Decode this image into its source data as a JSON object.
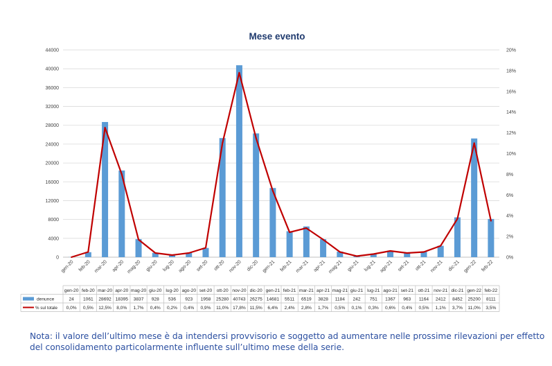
{
  "chart_data": {
    "type": "bar",
    "title": "Mese evento",
    "categories": [
      "gen-20",
      "feb-20",
      "mar-20",
      "apr-20",
      "mag-20",
      "giu-20",
      "lug-20",
      "ago-20",
      "set-20",
      "ott-20",
      "nov-20",
      "dic-20",
      "gen-21",
      "feb-21",
      "mar-21",
      "apr-21",
      "mag-21",
      "giu-21",
      "lug-21",
      "ago-21",
      "set-21",
      "ott-21",
      "nov-21",
      "dic-21",
      "gen-22",
      "feb-22"
    ],
    "y_left": {
      "ylim": [
        0,
        44000
      ],
      "ticks": [
        "0",
        "4000",
        "8000",
        "12000",
        "16000",
        "20000",
        "24000",
        "28000",
        "32000",
        "36000",
        "40000",
        "44000"
      ]
    },
    "y_right": {
      "ylim": [
        0,
        20
      ],
      "ticks": [
        "0%",
        "2%",
        "4%",
        "6%",
        "8%",
        "10%",
        "12%",
        "14%",
        "16%",
        "18%",
        "20%"
      ]
    },
    "series": [
      {
        "name": "denunce",
        "type": "bar",
        "axis": "left",
        "color": "#5b9bd5",
        "values": [
          24,
          1061,
          28692,
          18395,
          3837,
          928,
          536,
          923,
          1958,
          25280,
          40743,
          26275,
          14681,
          5511,
          6519,
          3828,
          1184,
          242,
          751,
          1367,
          963,
          1164,
          2412,
          8452,
          25200,
          8111
        ],
        "labels": [
          "24",
          "1061",
          "28692",
          "18395",
          "3837",
          "928",
          "536",
          "923",
          "1958",
          "25280",
          "40743",
          "26275",
          "14681",
          "5511",
          "6519",
          "3828",
          "1184",
          "242",
          "751",
          "1367",
          "963",
          "1164",
          "2412",
          "8452",
          "25200",
          "8111"
        ]
      },
      {
        "name": "% sul totale",
        "type": "line",
        "axis": "right",
        "color": "#c00000",
        "values": [
          0.0,
          0.5,
          12.5,
          8.0,
          1.7,
          0.4,
          0.2,
          0.4,
          0.9,
          11.0,
          17.8,
          11.5,
          6.4,
          2.4,
          2.8,
          1.7,
          0.5,
          0.1,
          0.3,
          0.6,
          0.4,
          0.5,
          1.1,
          3.7,
          11.0,
          3.5
        ],
        "labels": [
          "0,0%",
          "0,5%",
          "12,5%",
          "8,0%",
          "1,7%",
          "0,4%",
          "0,2%",
          "0,4%",
          "0,9%",
          "11,0%",
          "17,8%",
          "11,5%",
          "6,4%",
          "2,4%",
          "2,8%",
          "1,7%",
          "0,5%",
          "0,1%",
          "0,3%",
          "0,6%",
          "0,4%",
          "0,5%",
          "1,1%",
          "3,7%",
          "11,0%",
          "3,5%"
        ]
      }
    ],
    "grid": true,
    "legend": "data-table"
  },
  "note": {
    "line1": "Nota: il valore dell’ultimo mese è da intendersi provvisorio e soggetto ad aumentare nelle prossime rilevazioni per effetto",
    "line2": "del consolidamento particolarmente influente sull’ultimo mese della serie."
  }
}
